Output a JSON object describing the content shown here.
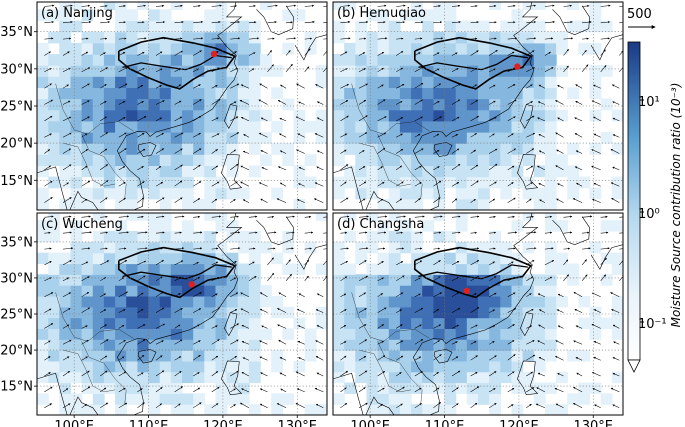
{
  "figure": {
    "panels": [
      {
        "label": "(a)",
        "title": "Nanjing",
        "site": [
          118.8,
          32.0
        ]
      },
      {
        "label": "(b)",
        "title": "Hemuqiao",
        "site": [
          119.8,
          30.3
        ]
      },
      {
        "label": "(c)",
        "title": "Wucheng",
        "site": [
          115.8,
          29.1
        ]
      },
      {
        "label": "(d)",
        "title": "Changsha",
        "site": [
          113.0,
          28.2
        ]
      }
    ],
    "lat_ticks": [
      "35°N",
      "30°N",
      "25°N",
      "20°N",
      "15°N"
    ],
    "lat_values": [
      35,
      30,
      25,
      20,
      15
    ],
    "lon_ticks": [
      "100°E",
      "110°E",
      "120°E",
      "130°E"
    ],
    "lon_values": [
      100,
      110,
      120,
      130
    ],
    "extent": {
      "lon": [
        95,
        134
      ],
      "lat": [
        11,
        39
      ]
    },
    "vector_reference": "500",
    "colorbar": {
      "label": "Moisture Source contribution ratio (10⁻³)",
      "ticks": [
        "10¹",
        "10⁰",
        "10⁻¹"
      ],
      "scale": "log",
      "colors": {
        "low": "#ddeef8",
        "mid": "#6aaed6",
        "high": "#1c3f8a"
      }
    },
    "colors": {
      "site_marker": "#e02020",
      "basin_outline": "#000000",
      "grid": "#888888"
    }
  }
}
